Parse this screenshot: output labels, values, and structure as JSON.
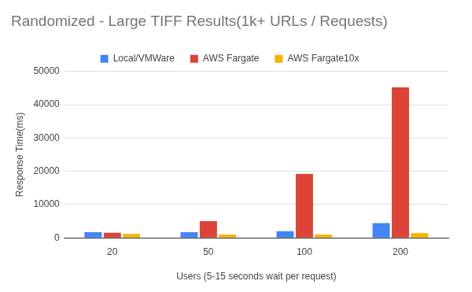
{
  "chart_data": {
    "type": "bar",
    "title": "Randomized - Large TIFF Results(1k+ URLs / Requests)",
    "x_label": "Users (5-15 seconds wait per request)",
    "y_label": "Response Time(ms)",
    "categories": [
      "20",
      "50",
      "100",
      "200"
    ],
    "series": [
      {
        "name": "Local/VMWare",
        "color": "#4285f4",
        "values": [
          1700,
          1700,
          2000,
          4400
        ]
      },
      {
        "name": "AWS Fargate",
        "color": "#db4437",
        "values": [
          1500,
          5000,
          19200,
          45200
        ]
      },
      {
        "name": "AWS Fargate10x",
        "color": "#f4b400",
        "values": [
          1200,
          1000,
          1000,
          1400
        ]
      }
    ],
    "ylim": [
      0,
      50000
    ],
    "yticks": [
      0,
      10000,
      20000,
      30000,
      40000,
      50000
    ],
    "grid": true,
    "legend": "top"
  }
}
